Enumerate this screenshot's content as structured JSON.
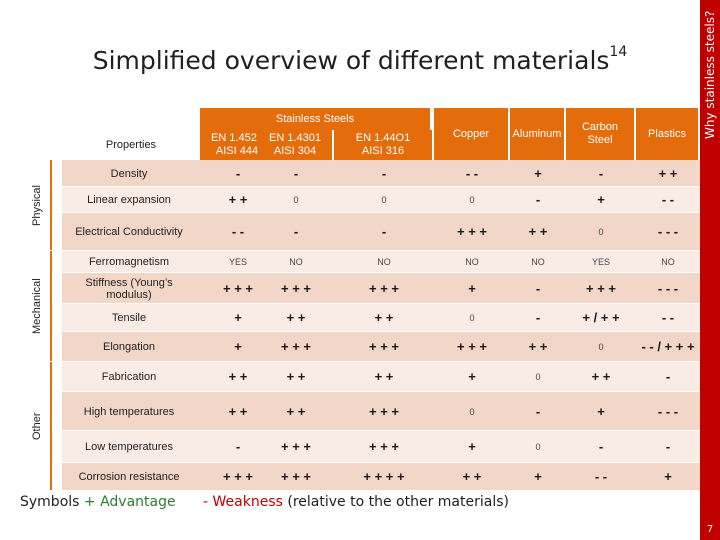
{
  "sidebar": {
    "label": "Why stainless steels?",
    "page_number": "7"
  },
  "title": {
    "text": "Simplified overview of different materials",
    "superscript": "14"
  },
  "table": {
    "group_header": "Stainless Steels",
    "columns": [
      {
        "label": "Properties"
      },
      {
        "label": "EN 1.4521\nAISI 444"
      },
      {
        "label": "EN 1.4301\nAISI 304"
      },
      {
        "label": "EN 1.44O1\nAISI 316"
      },
      {
        "label": "Copper"
      },
      {
        "label": "Aluminum"
      },
      {
        "label": "Carbon\nSteel"
      },
      {
        "label": "Plastics"
      }
    ],
    "groups": [
      {
        "label": "Physical"
      },
      {
        "label": "Mechanical"
      },
      {
        "label": "Other"
      }
    ],
    "rows": [
      {
        "property": "Density",
        "values": [
          "-",
          "-",
          "-",
          "- -",
          "+",
          "-",
          "+ +"
        ]
      },
      {
        "property": "Linear expansion",
        "values": [
          "+ +",
          "0",
          "0",
          "0",
          "-",
          "+",
          "- -"
        ]
      },
      {
        "property": "Electrical Conductivity",
        "values": [
          "- -",
          "-",
          "-",
          "+ + +",
          "+ +",
          "0",
          "- - -"
        ]
      },
      {
        "property": "Ferromagnetism",
        "values": [
          "YES",
          "NO",
          "NO",
          "NO",
          "NO",
          "YES",
          "NO"
        ]
      },
      {
        "property": "Stiffness (Young’s modulus)",
        "values": [
          "+ + +",
          "+ + +",
          "+ + +",
          "+",
          "-",
          "+ + +",
          "- - -"
        ]
      },
      {
        "property": "Tensile",
        "values": [
          "+",
          "+ +",
          "+ +",
          "0",
          "-",
          "+ / + +",
          "- -"
        ]
      },
      {
        "property": "Elongation",
        "values": [
          "+",
          "+ + +",
          "+ + +",
          "+ + +",
          "+ +",
          "0",
          "- - / + + +"
        ]
      },
      {
        "property": "Fabrication",
        "values": [
          "+ +",
          "+ +",
          "+ +",
          "+",
          "0",
          "+ +",
          "-"
        ]
      },
      {
        "property": "High temperatures",
        "values": [
          "+ +",
          "+ +",
          "+ + +",
          "0",
          "-",
          "+",
          "- - -"
        ]
      },
      {
        "property": "Low temperatures",
        "values": [
          "-",
          "+ + +",
          "+ + +",
          "+",
          "0",
          "-",
          "-"
        ]
      },
      {
        "property": "Corrosion resistance",
        "values": [
          "+ + +",
          "+ + +",
          "+ + + +",
          "+ +",
          "+",
          "- -",
          "+"
        ]
      }
    ]
  },
  "legend": {
    "prefix": "Symbols",
    "advantage_symbol": "+",
    "advantage_label": "Advantage",
    "weakness_symbol": "-",
    "weakness_label": "Weakness",
    "note": "(relative to the other materials)"
  },
  "colors": {
    "accent": "#c00000",
    "header": "#e46c0a",
    "row_dark": "#f2d6c8",
    "row_light": "#f9ece5",
    "group_bg": "#e46c0a"
  }
}
